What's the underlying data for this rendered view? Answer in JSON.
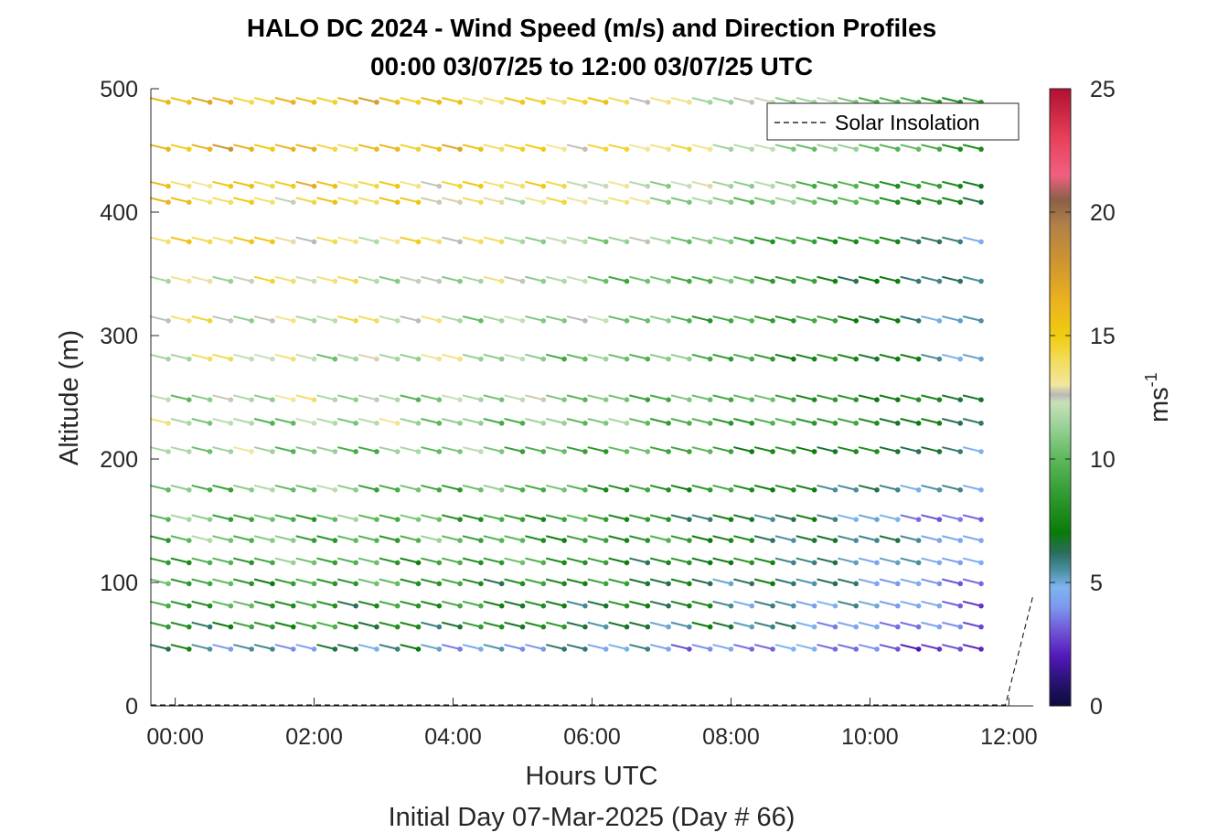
{
  "figure": {
    "title_line1": "HALO DC 2024 - Wind Speed (m/s) and Direction Profiles",
    "title_line2": "00:00 03/07/25 to 12:00 03/07/25  UTC"
  },
  "chart_data": {
    "type": "wind-barb-profile",
    "xlabel": "Hours UTC",
    "xlabel2": "Initial Day 07-Mar-2025 (Day # 66)",
    "ylabel": "Altitude (m)",
    "xlim": [
      -0.35,
      12.35
    ],
    "ylim": [
      0,
      500
    ],
    "x_ticks": [
      0,
      2,
      4,
      6,
      8,
      10,
      12
    ],
    "x_tick_labels": [
      "00:00",
      "02:00",
      "04:00",
      "06:00",
      "08:00",
      "10:00",
      "12:00"
    ],
    "y_ticks": [
      0,
      100,
      200,
      300,
      400,
      500
    ],
    "y_tick_labels": [
      "0",
      "100",
      "200",
      "300",
      "400",
      "500"
    ],
    "legend": {
      "label": "Solar Insolation",
      "location": "top-right"
    },
    "colorbar": {
      "label": "ms",
      "label_superscript": "-1",
      "range": [
        0,
        25
      ],
      "ticks": [
        0,
        5,
        10,
        15,
        20,
        25
      ],
      "tick_labels": [
        "0",
        "5",
        "10",
        "15",
        "20",
        "25"
      ],
      "stops": [
        [
          0,
          "#0b0b3b"
        ],
        [
          1,
          "#2a1273"
        ],
        [
          2,
          "#5218b8"
        ],
        [
          3,
          "#6f52d6"
        ],
        [
          4,
          "#7c98ee"
        ],
        [
          4.8,
          "#7fb4f0"
        ],
        [
          5.5,
          "#4a8fa0"
        ],
        [
          6.2,
          "#2a6e5c"
        ],
        [
          7,
          "#0a7a0a"
        ],
        [
          8.5,
          "#2f9a2f"
        ],
        [
          10,
          "#5cb85c"
        ],
        [
          11.5,
          "#a3d4a0"
        ],
        [
          12.3,
          "#c8e0b8"
        ],
        [
          12.6,
          "#b8b8b8"
        ],
        [
          13,
          "#f2e6a0"
        ],
        [
          14,
          "#f2dc5a"
        ],
        [
          15,
          "#f0cc10"
        ],
        [
          16.5,
          "#eab020"
        ],
        [
          18,
          "#cf9430"
        ],
        [
          19.5,
          "#b08048"
        ],
        [
          20.5,
          "#8a6048"
        ],
        [
          21.5,
          "#f06080"
        ],
        [
          23,
          "#e8405a"
        ],
        [
          25,
          "#b01030"
        ]
      ]
    },
    "times_hours": [
      -0.1,
      0.2,
      0.5,
      0.8,
      1.1,
      1.4,
      1.7,
      2.0,
      2.3,
      2.6,
      2.9,
      3.2,
      3.5,
      3.8,
      4.1,
      4.4,
      4.7,
      5.0,
      5.3,
      5.6,
      5.9,
      6.2,
      6.5,
      6.8,
      7.1,
      7.4,
      7.7,
      8.0,
      8.3,
      8.6,
      8.9,
      9.2,
      9.5,
      9.8,
      10.1,
      10.4,
      10.7,
      11.0,
      11.3,
      11.6
    ],
    "altitudes_m": [
      46,
      64,
      81,
      99,
      116,
      134,
      151,
      175,
      206,
      229,
      248,
      281,
      312,
      344,
      376,
      408,
      421,
      451,
      489
    ],
    "speed_profile_m_s": {
      "altitude_m": [
        46,
        64,
        81,
        99,
        116,
        134,
        151,
        175,
        206,
        229,
        248,
        281,
        312,
        344,
        376,
        408,
        421,
        451,
        489
      ],
      "early_hours": [
        5.5,
        8,
        8.5,
        9,
        9.5,
        10,
        10,
        10.5,
        11,
        11.5,
        12,
        12.5,
        13,
        13,
        14,
        14.5,
        15,
        16,
        16
      ],
      "late_hours": [
        2.5,
        3,
        3.2,
        3.5,
        4,
        4.2,
        3,
        4.5,
        5.5,
        6.5,
        6.5,
        5,
        5,
        5,
        5,
        7,
        7,
        8,
        8
      ]
    },
    "wind_from_direction_deg_approx": 300
  }
}
